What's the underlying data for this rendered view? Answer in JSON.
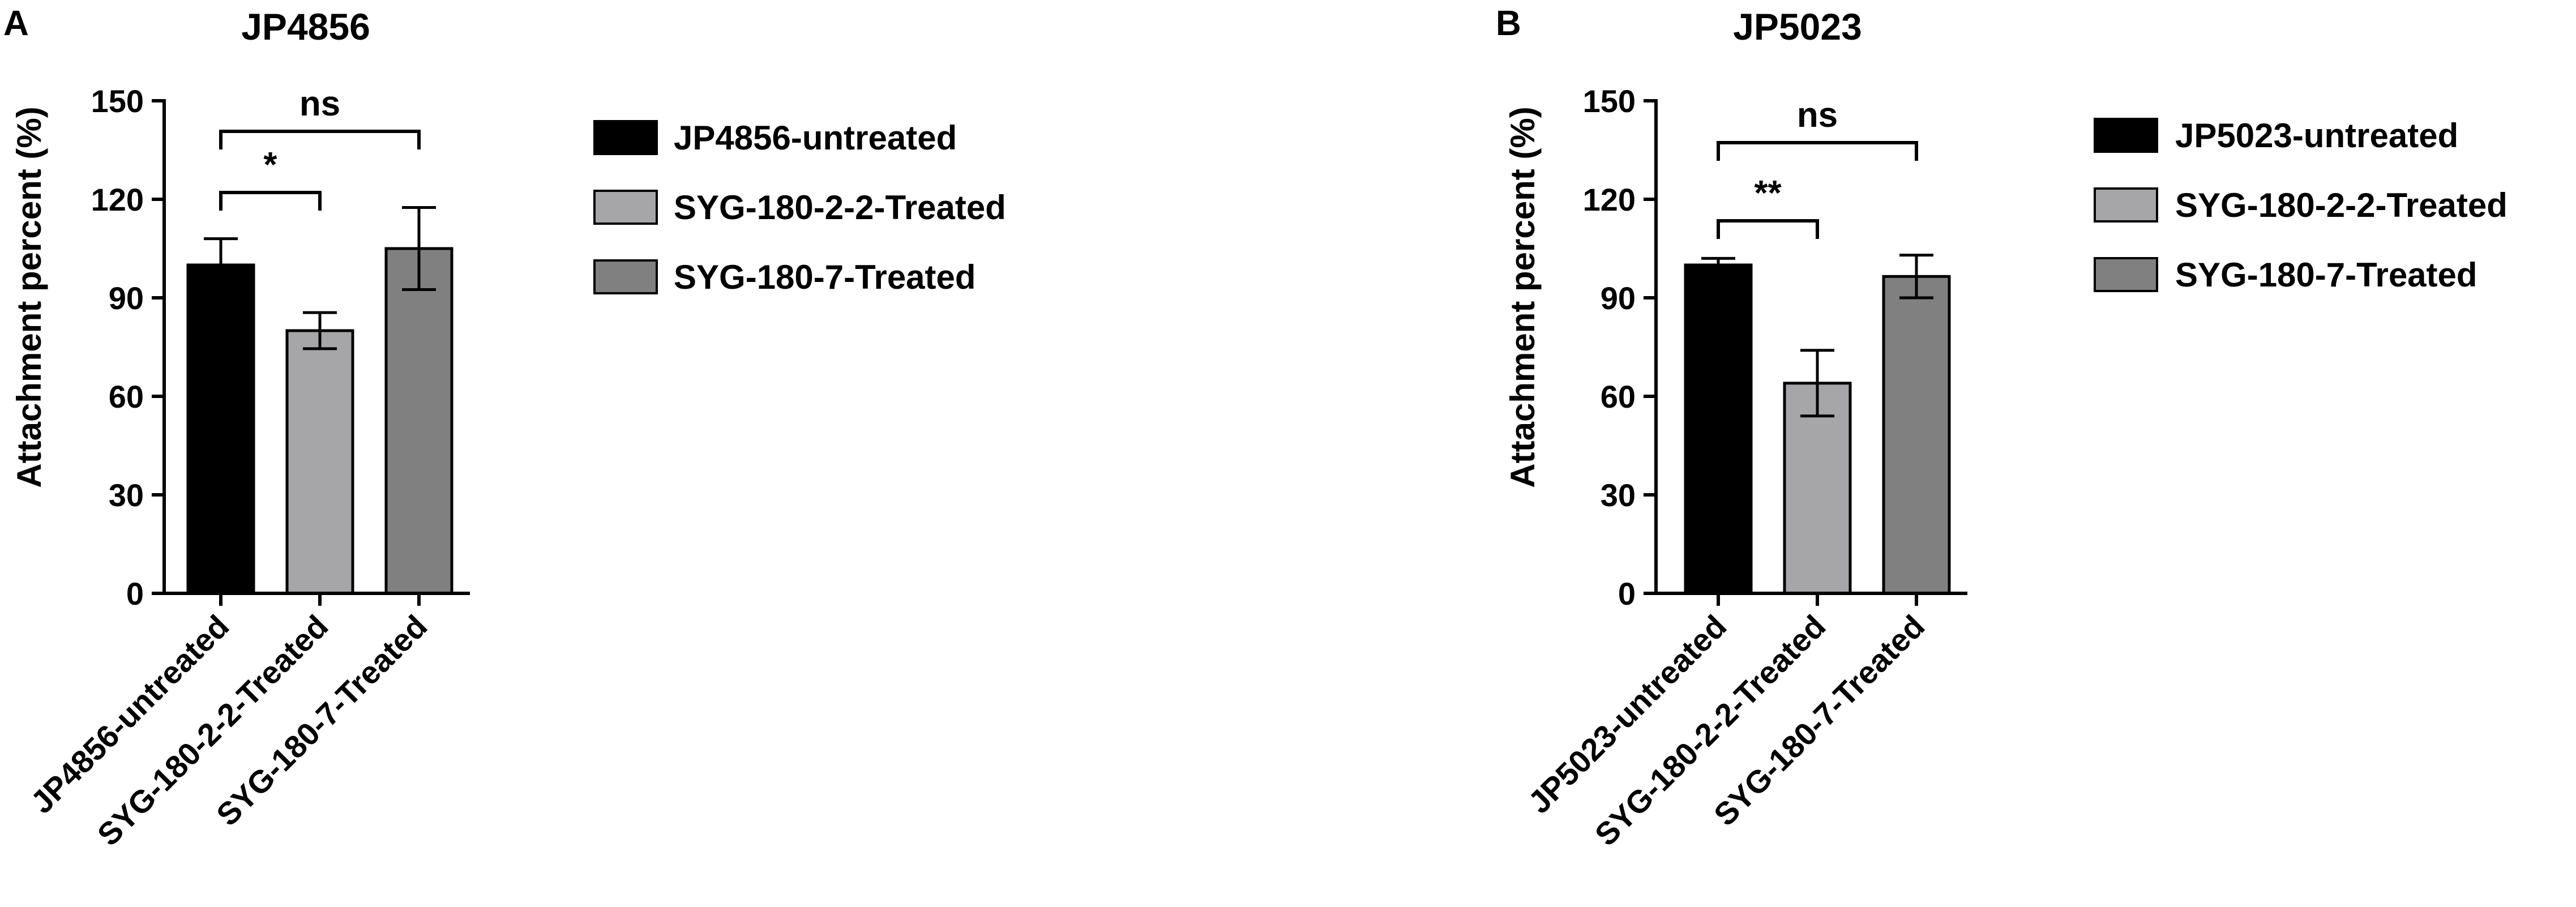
{
  "chart_data": [
    {
      "panel": "A",
      "type": "bar",
      "title": "JP4856",
      "ylabel": "Attachment percent (%)",
      "xlabel": "",
      "ylim": [
        0,
        150
      ],
      "yticks": [
        "0",
        "30",
        "60",
        "90",
        "120",
        "150"
      ],
      "categories": [
        "JP4856-untreated",
        "SYG-180-2-2-Treated",
        "SYG-180-7-Treated"
      ],
      "values": [
        100,
        80,
        105
      ],
      "error": [
        8,
        5.5,
        12.5
      ],
      "colors": [
        "#000000",
        "#a6a6a8",
        "#808080"
      ],
      "legend_position": "right",
      "legend": [
        "JP4856-untreated",
        "SYG-180-2-2-Treated",
        "SYG-180-7-Treated"
      ],
      "significance": [
        {
          "from": 0,
          "to": 1,
          "label": "*"
        },
        {
          "from": 0,
          "to": 2,
          "label": "ns"
        }
      ]
    },
    {
      "panel": "B",
      "type": "bar",
      "title": "JP5023",
      "ylabel": "Attachment percent (%)",
      "xlabel": "",
      "ylim": [
        0,
        150
      ],
      "yticks": [
        "0",
        "30",
        "60",
        "90",
        "120",
        "150"
      ],
      "categories": [
        "JP5023-untreated",
        "SYG-180-2-2-Treated",
        "SYG-180-7-Treated"
      ],
      "values": [
        100,
        64,
        96.5
      ],
      "error": [
        2,
        10,
        6.5
      ],
      "colors": [
        "#000000",
        "#a6a6a8",
        "#808080"
      ],
      "legend_position": "right",
      "legend": [
        "JP5023-untreated",
        "SYG-180-2-2-Treated",
        "SYG-180-7-Treated"
      ],
      "significance": [
        {
          "from": 0,
          "to": 1,
          "label": "**"
        },
        {
          "from": 0,
          "to": 2,
          "label": "ns"
        }
      ]
    }
  ]
}
